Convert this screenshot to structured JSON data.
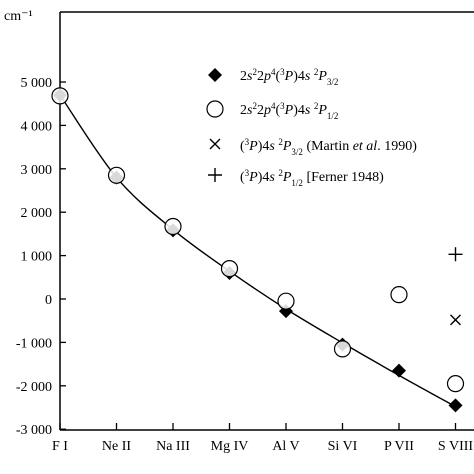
{
  "chart_data": {
    "type": "scatter",
    "unit_label": "cm⁻¹",
    "categories": [
      "F I",
      "Ne II",
      "Na III",
      "Mg IV",
      "Al V",
      "Si VI",
      "P VII",
      "S VIII"
    ],
    "y_tick_labels": [
      "5 000",
      "4 000",
      "3 000",
      "2 000",
      "1 000",
      "0",
      "-1 000",
      "-2 000",
      "-3 000"
    ],
    "y_tick_values": [
      5000,
      4000,
      3000,
      2000,
      1000,
      0,
      -1000,
      -2000,
      -3000
    ],
    "ylim": [
      -3000,
      5600
    ],
    "grid": false,
    "legend_position": "top-right",
    "series": [
      {
        "name": "2s²2p⁴(³P)4s ²P3/2",
        "marker": "diamond",
        "values": [
          4700,
          2800,
          1580,
          600,
          -280,
          -1050,
          -1650,
          -2450
        ]
      },
      {
        "name": "2s²2p⁴(³P)4s ²P1/2",
        "marker": "circle",
        "values": [
          4680,
          2850,
          1670,
          700,
          -50,
          -1150,
          100,
          -1950
        ]
      },
      {
        "name": "(³P)4s ²P3/2 (Martin et al. 1990)",
        "marker": "x",
        "values": [
          null,
          null,
          null,
          null,
          null,
          null,
          null,
          -480
        ]
      },
      {
        "name": "(³P)4s ²P1/2 (Ferner 1948)",
        "marker": "plus",
        "values": [
          null,
          null,
          null,
          null,
          null,
          null,
          null,
          1030
        ]
      }
    ],
    "fit_curve": [
      4700,
      2800,
      1600,
      640,
      -230,
      -1010,
      -1760,
      -2480
    ]
  }
}
